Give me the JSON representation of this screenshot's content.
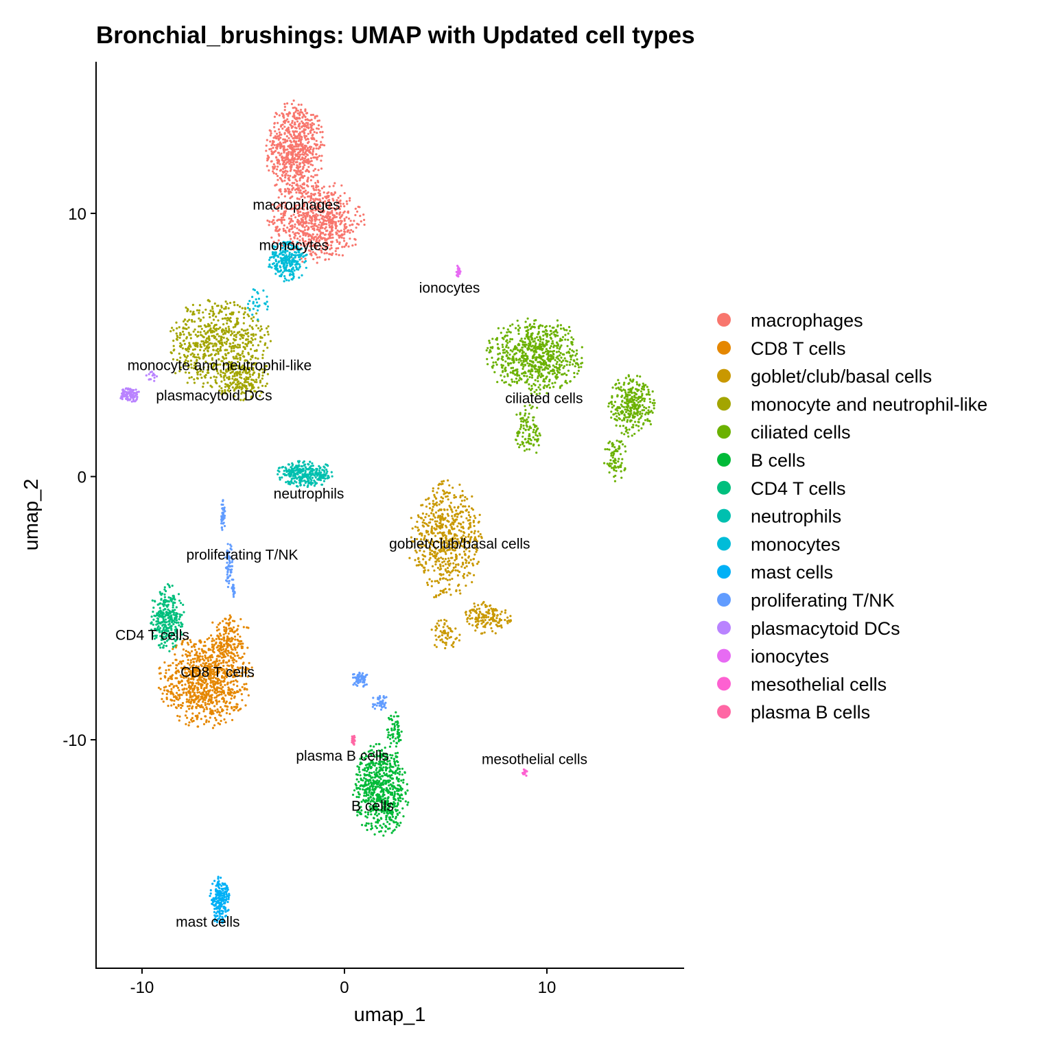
{
  "chart_data": {
    "type": "scatter",
    "title": "Bronchial_brushings: UMAP with Updated cell types",
    "xlabel": "umap_1",
    "ylabel": "umap_2",
    "xlim": [
      -12.27,
      16.78
    ],
    "ylim": [
      -18.68,
      15.76
    ],
    "xticks": [
      -10,
      0,
      10
    ],
    "yticks": [
      -10,
      0,
      10
    ],
    "xtick_labels": [
      "-10",
      "0",
      "10"
    ],
    "ytick_labels": [
      "-10",
      "0",
      "10"
    ],
    "grid": false,
    "legend_position": "right",
    "series": [
      {
        "name": "macrophages",
        "color": "#F8766D",
        "label_pos": [
          -2.37,
          10.33
        ],
        "blobs": [
          [
            -2.44,
            12.4,
            1.5,
            1.9,
            700
          ],
          [
            -1.4,
            9.7,
            2.4,
            1.6,
            700
          ]
        ]
      },
      {
        "name": "CD8 T cells",
        "color": "#E58700",
        "label_pos": [
          -6.27,
          -7.43
        ],
        "blobs": [
          [
            -6.85,
            -7.8,
            2.4,
            1.8,
            900
          ],
          [
            -5.7,
            -6.2,
            1.1,
            1.0,
            150
          ]
        ]
      },
      {
        "name": "goblet/club/basal cells",
        "color": "#C99800",
        "label_pos": [
          5.69,
          -2.56
        ],
        "blobs": [
          [
            5.0,
            -2.4,
            1.9,
            2.3,
            600
          ],
          [
            7.05,
            -5.37,
            1.2,
            0.65,
            150
          ],
          [
            5.0,
            -6.0,
            0.9,
            0.6,
            60
          ]
        ]
      },
      {
        "name": "monocyte and neutrophil-like",
        "color": "#A3A500",
        "label_pos": [
          -6.17,
          4.22
        ],
        "blobs": [
          [
            -6.2,
            5.0,
            2.7,
            1.8,
            650
          ],
          [
            -5.0,
            3.6,
            1.4,
            0.8,
            150
          ]
        ]
      },
      {
        "name": "ciliated cells",
        "color": "#6BB100",
        "label_pos": [
          9.86,
          2.97
        ],
        "blobs": [
          [
            9.4,
            4.6,
            2.5,
            1.5,
            700
          ],
          [
            14.2,
            2.7,
            1.2,
            1.2,
            300
          ],
          [
            9.1,
            1.8,
            0.7,
            1.1,
            100
          ],
          [
            13.4,
            0.7,
            0.6,
            0.9,
            80
          ]
        ]
      },
      {
        "name": "B cells",
        "color": "#00BA38",
        "label_pos": [
          1.39,
          -12.52
        ],
        "blobs": [
          [
            1.8,
            -11.9,
            1.4,
            1.8,
            650
          ],
          [
            2.5,
            -9.6,
            0.4,
            0.7,
            60
          ]
        ]
      },
      {
        "name": "CD4 T cells",
        "color": "#00BF7D",
        "label_pos": [
          -9.49,
          -6.02
        ],
        "blobs": [
          [
            -8.75,
            -5.37,
            0.85,
            1.3,
            300
          ]
        ]
      },
      {
        "name": "neutrophils",
        "color": "#00C0AF",
        "label_pos": [
          -1.76,
          -0.65
        ],
        "blobs": [
          [
            -1.9,
            0.1,
            1.5,
            0.5,
            300
          ]
        ]
      },
      {
        "name": "monocytes",
        "color": "#00BCD8",
        "label_pos": [
          -2.5,
          8.79
        ],
        "blobs": [
          [
            -2.8,
            8.2,
            1.0,
            0.8,
            250
          ],
          [
            -4.3,
            6.6,
            0.6,
            0.7,
            30
          ]
        ]
      },
      {
        "name": "mast cells",
        "color": "#00B0F6",
        "label_pos": [
          -6.75,
          -16.92
        ],
        "blobs": [
          [
            -6.17,
            -16.1,
            0.5,
            0.9,
            200
          ]
        ]
      },
      {
        "name": "proliferating T/NK",
        "color": "#619CFF",
        "label_pos": [
          -5.05,
          -2.97
        ],
        "blobs": [
          [
            -6.0,
            -1.5,
            0.12,
            0.7,
            40
          ],
          [
            -5.7,
            -3.4,
            0.2,
            0.9,
            60
          ],
          [
            -5.5,
            -4.3,
            0.1,
            0.4,
            20
          ],
          [
            0.8,
            -7.7,
            0.5,
            0.3,
            60
          ],
          [
            1.8,
            -8.6,
            0.5,
            0.3,
            40
          ]
        ]
      },
      {
        "name": "plasmacytoid DCs",
        "color": "#B983FF",
        "label_pos": [
          -6.44,
          3.08
        ],
        "blobs": [
          [
            -10.6,
            3.1,
            0.5,
            0.3,
            100
          ],
          [
            -9.5,
            3.8,
            0.3,
            0.2,
            15
          ]
        ]
      },
      {
        "name": "ionocytes",
        "color": "#E76BF3",
        "label_pos": [
          5.19,
          7.17
        ],
        "blobs": [
          [
            5.63,
            7.8,
            0.1,
            0.3,
            25
          ]
        ]
      },
      {
        "name": "mesothelial cells",
        "color": "#FD61D1",
        "label_pos": [
          9.39,
          -10.74
        ],
        "blobs": [
          [
            8.9,
            -11.24,
            0.15,
            0.15,
            15
          ]
        ]
      },
      {
        "name": "plasma B cells",
        "color": "#FF67A4",
        "label_pos": [
          -0.1,
          -10.61
        ],
        "blobs": [
          [
            0.44,
            -10.0,
            0.1,
            0.2,
            25
          ]
        ]
      }
    ]
  }
}
